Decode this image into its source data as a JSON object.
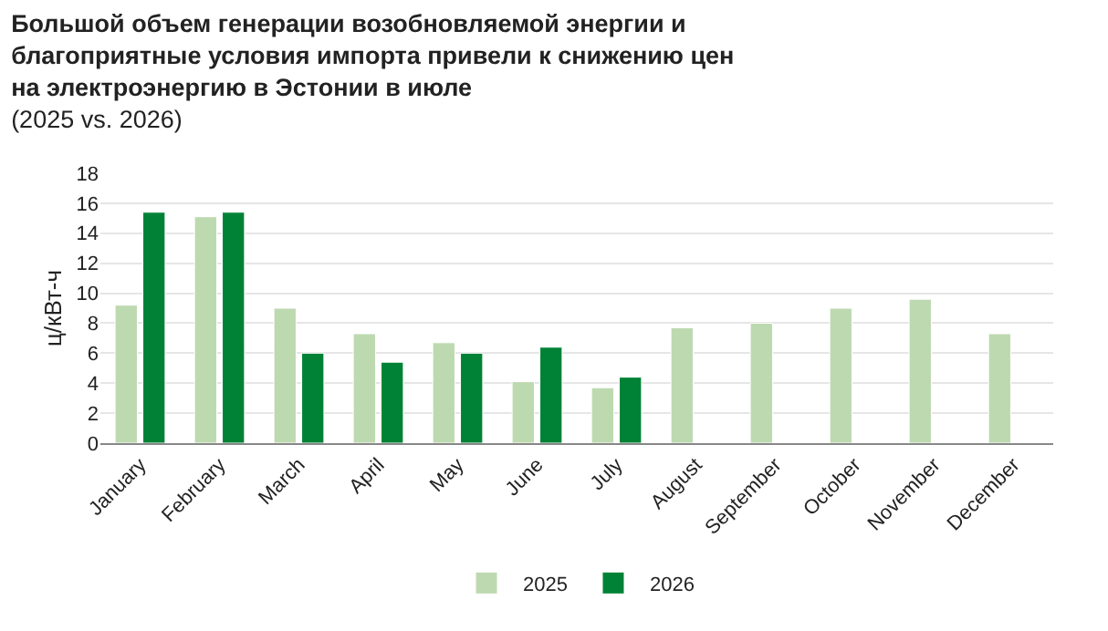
{
  "chart_data": {
    "type": "bar",
    "title": "Большой объем генерации возобновляемой энергии и благоприятные условия импорта привели к снижению цен на электроэнергию в Эстонии в июле",
    "subtitle": "(2025 vs. 2026)",
    "ylabel": "ц/кВт-ч",
    "categories": [
      "January",
      "February",
      "March",
      "April",
      "May",
      "June",
      "July",
      "August",
      "September",
      "October",
      "November",
      "December"
    ],
    "series": [
      {
        "name": "2025",
        "color": "#bdd9b0",
        "values": [
          9.2,
          15.1,
          9.0,
          7.3,
          6.7,
          4.1,
          3.7,
          7.7,
          8.0,
          9.0,
          9.6,
          7.3
        ]
      },
      {
        "name": "2026",
        "color": "#008236",
        "values": [
          15.4,
          15.4,
          6.0,
          5.4,
          6.0,
          6.4,
          4.4,
          null,
          null,
          null,
          null,
          null
        ]
      }
    ],
    "ylim": [
      0,
      18
    ],
    "yticks": [
      0,
      2,
      4,
      6,
      8,
      10,
      12,
      14,
      16,
      18
    ],
    "grid": "y",
    "legend": "bottom"
  }
}
